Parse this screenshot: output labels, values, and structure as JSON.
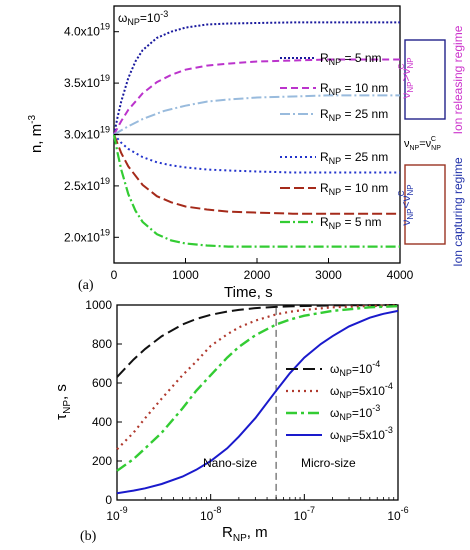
{
  "chart_data": [
    {
      "type": "line",
      "panel_label": "(a)",
      "xlabel": "Time, s",
      "ylabel": "n, m",
      "ylabel_sup": "-3",
      "xlim": [
        0,
        4000
      ],
      "ylim": [
        17500000000000000000,
        42500000000000000000
      ],
      "x_ticks": [
        {
          "v": 0,
          "label": "0"
        },
        {
          "v": 1000,
          "label": "1000"
        },
        {
          "v": 2000,
          "label": "2000"
        },
        {
          "v": 3000,
          "label": "3000"
        },
        {
          "v": 4000,
          "label": "4000"
        }
      ],
      "y_ticks": [
        {
          "v": 20000000000000000000,
          "mant": "2.0x10",
          "exp": "19"
        },
        {
          "v": 25000000000000000000,
          "mant": "2.5x10",
          "exp": "19"
        },
        {
          "v": 30000000000000000000,
          "mant": "3.0x10",
          "exp": "19"
        },
        {
          "v": 35000000000000000000,
          "mant": "3.5x10",
          "exp": "19"
        },
        {
          "v": 40000000000000000000,
          "mant": "4.0x10",
          "exp": "19"
        }
      ],
      "annotation": {
        "omega": "ω",
        "sub": "NP",
        "rest": "=10",
        "sup": "-3"
      },
      "series": [
        {
          "name": "R_NP = 5 nm",
          "base": "R",
          "sub": "NP",
          "rest": " = 5 nm",
          "color": "#1a1a9e",
          "dash": "2,2",
          "width": 2,
          "x": [
            0,
            50,
            100,
            200,
            300,
            400,
            600,
            800,
            1000,
            1300,
            1600,
            2000,
            2500,
            3000,
            3500,
            4000
          ],
          "y": [
            30000000000000000000,
            31700000000000000000,
            33200000000000000000,
            35500000000000000000,
            37100000000000000000,
            38200000000000000000,
            39400000000000000000,
            40000000000000000000,
            40400000000000000000,
            40700000000000000000,
            40800000000000000000,
            40850000000000000000,
            40900000000000000000,
            40900000000000000000,
            40900000000000000000,
            40900000000000000000
          ]
        },
        {
          "name": "R_NP = 10 nm",
          "base": "R",
          "sub": "NP",
          "rest": " = 10 nm",
          "color": "#bb33cc",
          "dash": "7,4",
          "width": 2,
          "x": [
            0,
            100,
            200,
            400,
            600,
            800,
            1000,
            1300,
            1600,
            2000,
            2500,
            3000,
            3500,
            4000
          ],
          "y": [
            30000000000000000000,
            31300000000000000000,
            32400000000000000000,
            34000000000000000000,
            35100000000000000000,
            35800000000000000000,
            36300000000000000000,
            36700000000000000000,
            36900000000000000000,
            37100000000000000000,
            37200000000000000000,
            37300000000000000000,
            37300000000000000000,
            37300000000000000000
          ]
        },
        {
          "name": "R_NP = 25 nm",
          "base": "R",
          "sub": "NP",
          "rest": " = 25 nm",
          "color": "#99bbdd",
          "dash": "10,3,2,3",
          "width": 2,
          "x": [
            0,
            200,
            400,
            700,
            1000,
            1300,
            1600,
            2000,
            2500,
            3000,
            3500,
            4000
          ],
          "y": [
            30000000000000000000,
            30800000000000000000,
            31500000000000000000,
            32300000000000000000,
            32800000000000000000,
            33200000000000000000,
            33400000000000000000,
            33600000000000000000,
            33700000000000000000,
            33800000000000000000,
            33800000000000000000,
            33800000000000000000
          ]
        },
        {
          "name": "ν_NP = ν^C_NP",
          "color": "#333333",
          "dash": "",
          "width": 1.6,
          "x": [
            0,
            4000
          ],
          "y": [
            30000000000000000000,
            30000000000000000000
          ]
        },
        {
          "name": "R_NP = 25 nm",
          "base": "R",
          "sub": "NP",
          "rest": " = 25 nm",
          "color": "#2233cc",
          "dash": "2,3",
          "width": 2,
          "x": [
            0,
            100,
            200,
            400,
            600,
            800,
            1000,
            1300,
            1600,
            2000,
            2500,
            3000,
            3500,
            4000
          ],
          "y": [
            30000000000000000000,
            29200000000000000000,
            28600000000000000000,
            27800000000000000000,
            27300000000000000000,
            27000000000000000000,
            26800000000000000000,
            26600000000000000000,
            26500000000000000000,
            26400000000000000000,
            26300000000000000000,
            26300000000000000000,
            26300000000000000000,
            26300000000000000000
          ]
        },
        {
          "name": "R_NP = 10 nm",
          "base": "R",
          "sub": "NP",
          "rest": " = 10 nm",
          "color": "#a52a1a",
          "dash": "10,4",
          "width": 2,
          "x": [
            0,
            100,
            200,
            400,
            600,
            800,
            1000,
            1300,
            1600,
            2000,
            2500,
            3000,
            3500,
            4000
          ],
          "y": [
            30000000000000000000,
            28200000000000000000,
            26900000000000000000,
            25100000000000000000,
            24000000000000000000,
            23400000000000000000,
            23000000000000000000,
            22700000000000000000,
            22500000000000000000,
            22400000000000000000,
            22300000000000000000,
            22300000000000000000,
            22300000000000000000,
            22300000000000000000
          ]
        },
        {
          "name": "R_NP = 5 nm",
          "base": "R",
          "sub": "NP",
          "rest": " = 5 nm",
          "color": "#33cc33",
          "dash": "10,3,2,3",
          "width": 2.2,
          "x": [
            0,
            50,
            100,
            200,
            300,
            400,
            600,
            800,
            1000,
            1300,
            1600,
            2000,
            2500,
            3000,
            3500,
            4000
          ],
          "y": [
            30000000000000000000,
            28200000000000000000,
            26600000000000000000,
            24200000000000000000,
            22600000000000000000,
            21500000000000000000,
            20300000000000000000,
            19700000000000000000,
            19400000000000000000,
            19200000000000000000,
            19100000000000000000,
            19100000000000000000,
            19100000000000000000,
            19100000000000000000,
            19100000000000000000,
            19100000000000000000
          ]
        }
      ],
      "side_labels": {
        "release_condition": {
          "a": "ν",
          "a_sub": "NP",
          "op": ">",
          "b": "ν",
          "b_sub": "NP",
          "b_sup": "C"
        },
        "equal_condition": {
          "a": "ν",
          "a_sub": "NP",
          "op": "=",
          "b": "ν",
          "b_sub": "NP",
          "b_sup": "C"
        },
        "capture_condition": {
          "a": "ν",
          "a_sub": "NP",
          "op": "<",
          "b": "ν",
          "b_sub": "NP",
          "b_sup": "C"
        },
        "ion_releasing": "Ion releasing regime",
        "ion_capturing": "Ion capturing regime",
        "release_color": "#cc33cc",
        "capture_color": "#2233aa",
        "box_top_color": "#22228a",
        "box_bottom_color": "#993322"
      }
    },
    {
      "type": "line",
      "panel_label": "(b)",
      "xlabel": "R",
      "xlabel_sub": "NP",
      "xlabel_rest": ", m",
      "ylabel": "τ",
      "ylabel_sub": "NP",
      "ylabel_rest": ", s",
      "x_scale": "log",
      "xlim": [
        1e-09,
        1e-06
      ],
      "ylim": [
        0,
        1000
      ],
      "x_ticks": [
        {
          "v": 1e-09,
          "base": "10",
          "exp": "-9"
        },
        {
          "v": 1e-08,
          "base": "10",
          "exp": "-8"
        },
        {
          "v": 1e-07,
          "base": "10",
          "exp": "-7"
        },
        {
          "v": 1e-06,
          "base": "10",
          "exp": "-6"
        }
      ],
      "y_ticks": [
        0,
        200,
        400,
        600,
        800,
        1000
      ],
      "divider_x": 5e-08,
      "region_left": "Nano-size",
      "region_right": "Micro-size",
      "legend_position": "center-right",
      "series": [
        {
          "name": "ω_NP=10^-4",
          "sym": "ω",
          "sub": "NP",
          "rest": "=10",
          "sup": "-4",
          "color": "#111111",
          "dash": "12,5",
          "width": 2,
          "x": [
            1e-09,
            1.5e-09,
            2e-09,
            3e-09,
            5e-09,
            7e-09,
            1e-08,
            1.5e-08,
            2e-08,
            3e-08,
            5e-08,
            7e-08,
            1e-07,
            2e-07,
            5e-07,
            1e-06
          ],
          "y": [
            630,
            720,
            775,
            840,
            900,
            928,
            950,
            966,
            975,
            984,
            990,
            993,
            995,
            998,
            999,
            1000
          ]
        },
        {
          "name": "ω_NP=5x10^-4",
          "sym": "ω",
          "sub": "NP",
          "rest": "=5x10",
          "sup": "-4",
          "color": "#b03a2e",
          "dash": "2,4",
          "width": 2.2,
          "x": [
            1e-09,
            1.5e-09,
            2e-09,
            3e-09,
            5e-09,
            7e-09,
            1e-08,
            1.5e-08,
            2e-08,
            3e-08,
            5e-08,
            7e-08,
            1e-07,
            2e-07,
            5e-07,
            1e-06
          ],
          "y": [
            260,
            345,
            420,
            520,
            640,
            710,
            790,
            850,
            885,
            920,
            952,
            965,
            975,
            988,
            995,
            998
          ]
        },
        {
          "name": "ω_NP=10^-3",
          "sym": "ω",
          "sub": "NP",
          "rest": "=10",
          "sup": "-3",
          "color": "#33cc33",
          "dash": "11,4,3,4",
          "width": 2.4,
          "x": [
            1e-09,
            1.5e-09,
            2e-09,
            3e-09,
            5e-09,
            7e-09,
            1e-08,
            1.5e-08,
            2e-08,
            3e-08,
            5e-08,
            7e-08,
            1e-07,
            2e-07,
            5e-07,
            1e-06
          ],
          "y": [
            150,
            210,
            265,
            345,
            470,
            560,
            640,
            730,
            785,
            845,
            900,
            925,
            945,
            970,
            988,
            994
          ]
        },
        {
          "name": "ω_NP=5x10^-3",
          "sym": "ω",
          "sub": "NP",
          "rest": "=5x10",
          "sup": "-3",
          "color": "#1a1acc",
          "dash": "",
          "width": 2,
          "x": [
            1e-09,
            1.5e-09,
            2e-09,
            3e-09,
            5e-09,
            7e-09,
            1e-08,
            1.5e-08,
            2e-08,
            3e-08,
            5e-08,
            7e-08,
            1e-07,
            1.5e-07,
            2e-07,
            3e-07,
            5e-07,
            7e-07,
            1e-06
          ],
          "y": [
            35,
            48,
            60,
            82,
            120,
            155,
            200,
            265,
            325,
            420,
            560,
            650,
            730,
            800,
            840,
            890,
            935,
            955,
            970
          ]
        }
      ]
    }
  ]
}
